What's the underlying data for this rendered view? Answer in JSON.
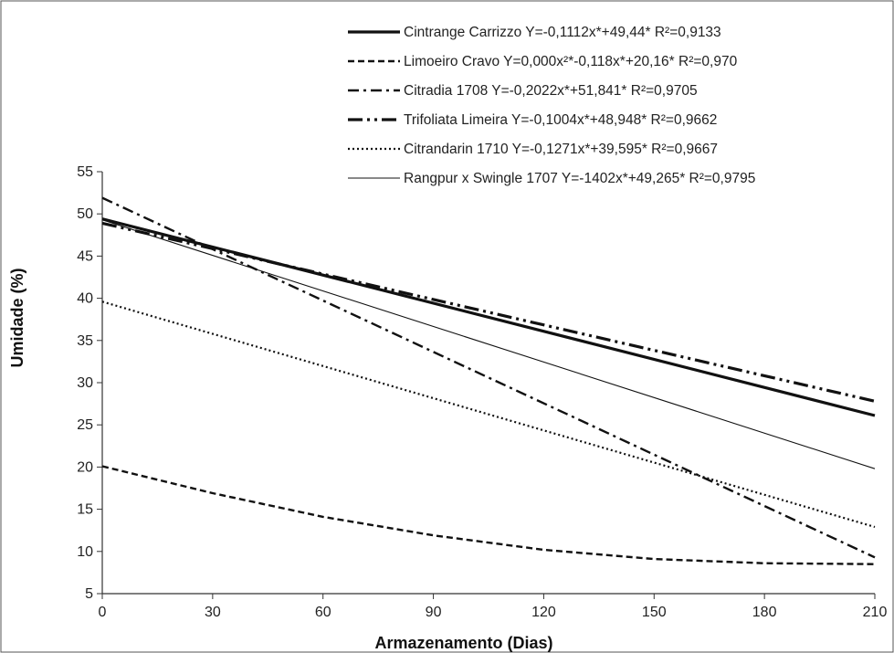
{
  "chart_data": {
    "type": "line",
    "title": "",
    "xlabel": "Armazenamento (Dias)",
    "ylabel": "Umidade (%)",
    "xlim": [
      0,
      210
    ],
    "ylim": [
      5,
      55
    ],
    "x_ticks": [
      "0",
      "30",
      "60",
      "90",
      "120",
      "150",
      "180",
      "210"
    ],
    "y_ticks": [
      "5",
      "10",
      "15",
      "20",
      "25",
      "30",
      "35",
      "40",
      "45",
      "50",
      "55"
    ],
    "grid": false,
    "legend_position": "top-right",
    "series": [
      {
        "name": "Cintrange Carrizzo  Y=-0,1112x*+49,44*  R²=0,9133",
        "style": "solid-thick",
        "color": "#111111",
        "points": [
          [
            0,
            49.4
          ],
          [
            210,
            26.1
          ]
        ]
      },
      {
        "name": "Limoeiro Cravo  Y=0,000x²*-0,118x*+20,16*  R²=0,970",
        "style": "dashed",
        "color": "#111111",
        "points": [
          [
            0,
            20.1
          ],
          [
            30,
            16.9
          ],
          [
            60,
            14.1
          ],
          [
            90,
            11.9
          ],
          [
            120,
            10.2
          ],
          [
            150,
            9.1
          ],
          [
            180,
            8.6
          ],
          [
            210,
            8.5
          ]
        ]
      },
      {
        "name": "Citradia 1708  Y=-0,2022x*+51,841*  R²=0,9705",
        "style": "dash-dot",
        "color": "#111111",
        "points": [
          [
            0,
            51.9
          ],
          [
            210,
            9.3
          ]
        ]
      },
      {
        "name": "Trifoliata Limeira  Y=-0,1004x*+48,948*  R²=0,9662",
        "style": "long-dash-dot-dot",
        "color": "#111111",
        "points": [
          [
            0,
            48.9
          ],
          [
            210,
            27.8
          ]
        ]
      },
      {
        "name": "Citrandarin 1710  Y=-0,1271x*+39,595*  R²=0,9667",
        "style": "dotted",
        "color": "#111111",
        "points": [
          [
            0,
            39.6
          ],
          [
            210,
            12.9
          ]
        ]
      },
      {
        "name": "Rangpur x Swingle 1707  Y=-1402x*+49,265*  R²=0,9795",
        "style": "solid-thin",
        "color": "#111111",
        "points": [
          [
            0,
            49.3
          ],
          [
            210,
            19.8
          ]
        ]
      }
    ]
  }
}
